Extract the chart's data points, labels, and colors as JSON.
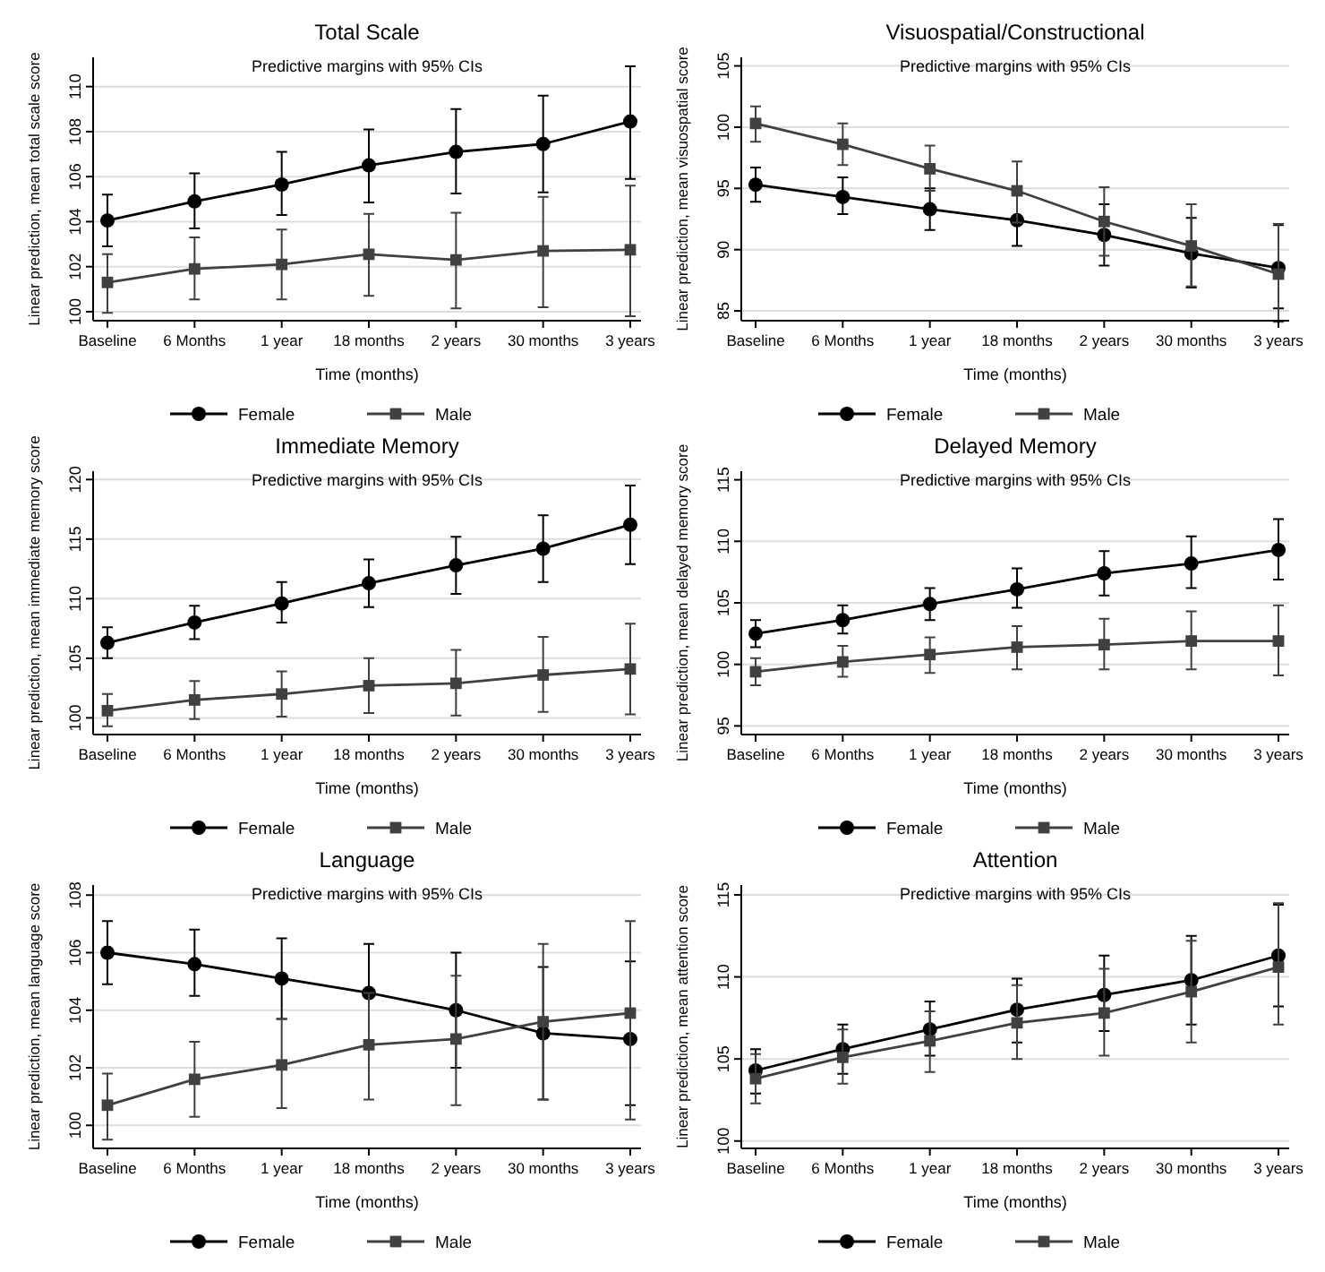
{
  "chart_data": [
    {
      "type": "line",
      "title": "Total Scale",
      "subtitle": "Predictive margins with 95% CIs",
      "xlabel": "Time (months)",
      "ylabel": "Linear prediction, mean total scale score",
      "categories": [
        "Baseline",
        "6 Months",
        "1 year",
        "18 months",
        "2 years",
        "30 months",
        "3 years"
      ],
      "ylim": [
        99.6,
        111.3
      ],
      "yticks": [
        100,
        102,
        104,
        106,
        108,
        110
      ],
      "grid": "y",
      "legend": "bottom",
      "series": [
        {
          "name": "Female",
          "color": "#000000",
          "marker": "circle",
          "values": [
            104.05,
            104.9,
            105.65,
            106.5,
            107.1,
            107.45,
            108.45
          ],
          "errors": [
            [
              102.9,
              105.2
            ],
            [
              103.7,
              106.15
            ],
            [
              104.3,
              107.1
            ],
            [
              104.85,
              108.1
            ],
            [
              105.25,
              109.0
            ],
            [
              105.3,
              109.6
            ],
            [
              105.9,
              110.9
            ]
          ]
        },
        {
          "name": "Male",
          "color": "#404040",
          "marker": "square",
          "values": [
            101.3,
            101.9,
            102.1,
            102.55,
            102.3,
            102.7,
            102.75
          ],
          "errors": [
            [
              99.95,
              102.55
            ],
            [
              100.55,
              103.3
            ],
            [
              100.55,
              103.65
            ],
            [
              100.7,
              104.35
            ],
            [
              100.15,
              104.4
            ],
            [
              100.2,
              105.1
            ],
            [
              99.8,
              105.6
            ]
          ]
        }
      ]
    },
    {
      "type": "line",
      "title": "Visuospatial/Constructional",
      "subtitle": "Predictive margins with 95% CIs",
      "xlabel": "Time (months)",
      "ylabel": "Linear prediction, mean visuospatial score",
      "categories": [
        "Baseline",
        "6 Months",
        "1 year",
        "18 months",
        "2 years",
        "30 months",
        "3 years"
      ],
      "ylim": [
        84.2,
        105.7
      ],
      "yticks": [
        85,
        90,
        95,
        100,
        105
      ],
      "grid": "y",
      "legend": "bottom",
      "series": [
        {
          "name": "Female",
          "color": "#000000",
          "marker": "circle",
          "values": [
            95.3,
            94.3,
            93.3,
            92.4,
            91.2,
            89.7,
            88.5
          ],
          "errors": [
            [
              93.9,
              96.7
            ],
            [
              92.9,
              95.9
            ],
            [
              91.6,
              95.0
            ],
            [
              90.3,
              94.5
            ],
            [
              88.7,
              93.7
            ],
            [
              86.9,
              92.6
            ],
            [
              85.2,
              92.0
            ]
          ]
        },
        {
          "name": "Male",
          "color": "#404040",
          "marker": "square",
          "values": [
            100.3,
            98.6,
            96.6,
            94.8,
            92.3,
            90.3,
            88.0
          ],
          "errors": [
            [
              98.8,
              101.7
            ],
            [
              96.9,
              100.3
            ],
            [
              94.8,
              98.5
            ],
            [
              92.2,
              97.2
            ],
            [
              89.5,
              95.1
            ],
            [
              87.0,
              93.7
            ],
            [
              84.1,
              92.1
            ]
          ]
        }
      ]
    },
    {
      "type": "line",
      "title": "Immediate Memory",
      "subtitle": "Predictive margins with 95% CIs",
      "xlabel": "Time (months)",
      "ylabel": "Linear prediction, mean immediate memory score",
      "categories": [
        "Baseline",
        "6 Months",
        "1 year",
        "18 months",
        "2 years",
        "30 months",
        "3 years"
      ],
      "ylim": [
        98.6,
        120.7
      ],
      "yticks": [
        100,
        105,
        110,
        115,
        120
      ],
      "grid": "y",
      "legend": "bottom",
      "series": [
        {
          "name": "Female",
          "color": "#000000",
          "marker": "circle",
          "values": [
            106.3,
            108.0,
            109.6,
            111.3,
            112.8,
            114.2,
            116.2
          ],
          "errors": [
            [
              105.0,
              107.6
            ],
            [
              106.6,
              109.4
            ],
            [
              108.0,
              111.4
            ],
            [
              109.3,
              113.3
            ],
            [
              110.4,
              115.2
            ],
            [
              111.4,
              117.0
            ],
            [
              112.9,
              119.5
            ]
          ]
        },
        {
          "name": "Male",
          "color": "#404040",
          "marker": "square",
          "values": [
            100.6,
            101.5,
            102.0,
            102.7,
            102.9,
            103.6,
            104.1
          ],
          "errors": [
            [
              99.3,
              102.0
            ],
            [
              99.9,
              103.1
            ],
            [
              100.1,
              103.9
            ],
            [
              100.4,
              105.0
            ],
            [
              100.2,
              105.7
            ],
            [
              100.5,
              106.8
            ],
            [
              100.3,
              107.9
            ]
          ]
        }
      ]
    },
    {
      "type": "line",
      "title": "Delayed Memory",
      "subtitle": "Predictive margins with 95% CIs",
      "xlabel": "Time (months)",
      "ylabel": "Linear prediction, mean delayed memory score",
      "categories": [
        "Baseline",
        "6 Months",
        "1 year",
        "18 months",
        "2 years",
        "30 months",
        "3 years"
      ],
      "ylim": [
        94.3,
        115.7
      ],
      "yticks": [
        95,
        100,
        105,
        110,
        115
      ],
      "grid": "y",
      "legend": "bottom",
      "series": [
        {
          "name": "Female",
          "color": "#000000",
          "marker": "circle",
          "values": [
            102.5,
            103.6,
            104.9,
            106.1,
            107.4,
            108.2,
            109.3
          ],
          "errors": [
            [
              101.4,
              103.6
            ],
            [
              102.5,
              104.8
            ],
            [
              103.6,
              106.2
            ],
            [
              104.6,
              107.8
            ],
            [
              105.6,
              109.2
            ],
            [
              106.2,
              110.4
            ],
            [
              106.9,
              111.8
            ]
          ]
        },
        {
          "name": "Male",
          "color": "#404040",
          "marker": "square",
          "values": [
            99.4,
            100.2,
            100.8,
            101.4,
            101.6,
            101.9,
            101.9
          ],
          "errors": [
            [
              98.3,
              100.5
            ],
            [
              99.0,
              101.5
            ],
            [
              99.3,
              102.2
            ],
            [
              99.6,
              103.1
            ],
            [
              99.6,
              103.7
            ],
            [
              99.6,
              104.3
            ],
            [
              99.1,
              104.8
            ]
          ]
        }
      ]
    },
    {
      "type": "line",
      "title": "Language",
      "subtitle": "Predictive margins with 95% CIs",
      "xlabel": "Time (months)",
      "ylabel": "Linear prediction, mean language score",
      "categories": [
        "Baseline",
        "6 Months",
        "1 year",
        "18 months",
        "2 years",
        "30 months",
        "3 years"
      ],
      "ylim": [
        99.2,
        108.35
      ],
      "yticks": [
        100,
        102,
        104,
        106,
        108
      ],
      "grid": "y",
      "legend": "bottom",
      "series": [
        {
          "name": "Female",
          "color": "#000000",
          "marker": "circle",
          "values": [
            106.0,
            105.6,
            105.1,
            104.6,
            104.0,
            103.2,
            103.0
          ],
          "errors": [
            [
              104.9,
              107.1
            ],
            [
              104.5,
              106.8
            ],
            [
              103.7,
              106.5
            ],
            [
              102.9,
              106.3
            ],
            [
              102.0,
              106.0
            ],
            [
              100.9,
              105.5
            ],
            [
              100.7,
              105.7
            ]
          ]
        },
        {
          "name": "Male",
          "color": "#404040",
          "marker": "square",
          "values": [
            100.7,
            101.6,
            102.1,
            102.8,
            103.0,
            103.6,
            103.9
          ],
          "errors": [
            [
              99.5,
              101.8
            ],
            [
              100.3,
              102.9
            ],
            [
              100.6,
              103.7
            ],
            [
              100.9,
              104.6
            ],
            [
              100.7,
              105.2
            ],
            [
              100.9,
              106.3
            ],
            [
              100.2,
              107.1
            ]
          ]
        }
      ]
    },
    {
      "type": "line",
      "title": "Attention",
      "subtitle": "Predictive margins with 95% CIs",
      "xlabel": "Time (months)",
      "ylabel": "Linear prediction, mean attention score",
      "categories": [
        "Baseline",
        "6 Months",
        "1 year",
        "18 months",
        "2 years",
        "30 months",
        "3 years"
      ],
      "ylim": [
        99.55,
        115.6
      ],
      "yticks": [
        100,
        105,
        110,
        115
      ],
      "grid": "y",
      "legend": "bottom",
      "series": [
        {
          "name": "Female",
          "color": "#000000",
          "marker": "circle",
          "values": [
            104.3,
            105.6,
            106.8,
            108.0,
            108.9,
            109.8,
            111.3
          ],
          "errors": [
            [
              102.9,
              105.6
            ],
            [
              104.1,
              107.1
            ],
            [
              105.2,
              108.5
            ],
            [
              106.0,
              109.9
            ],
            [
              106.7,
              111.3
            ],
            [
              107.1,
              112.5
            ],
            [
              108.2,
              114.4
            ]
          ]
        },
        {
          "name": "Male",
          "color": "#404040",
          "marker": "square",
          "values": [
            103.8,
            105.1,
            106.1,
            107.2,
            107.8,
            109.1,
            110.6
          ],
          "errors": [
            [
              102.3,
              105.3
            ],
            [
              103.5,
              106.8
            ],
            [
              104.2,
              107.9
            ],
            [
              105.0,
              109.5
            ],
            [
              105.2,
              110.5
            ],
            [
              106.0,
              112.2
            ],
            [
              107.1,
              114.5
            ]
          ]
        }
      ]
    }
  ]
}
